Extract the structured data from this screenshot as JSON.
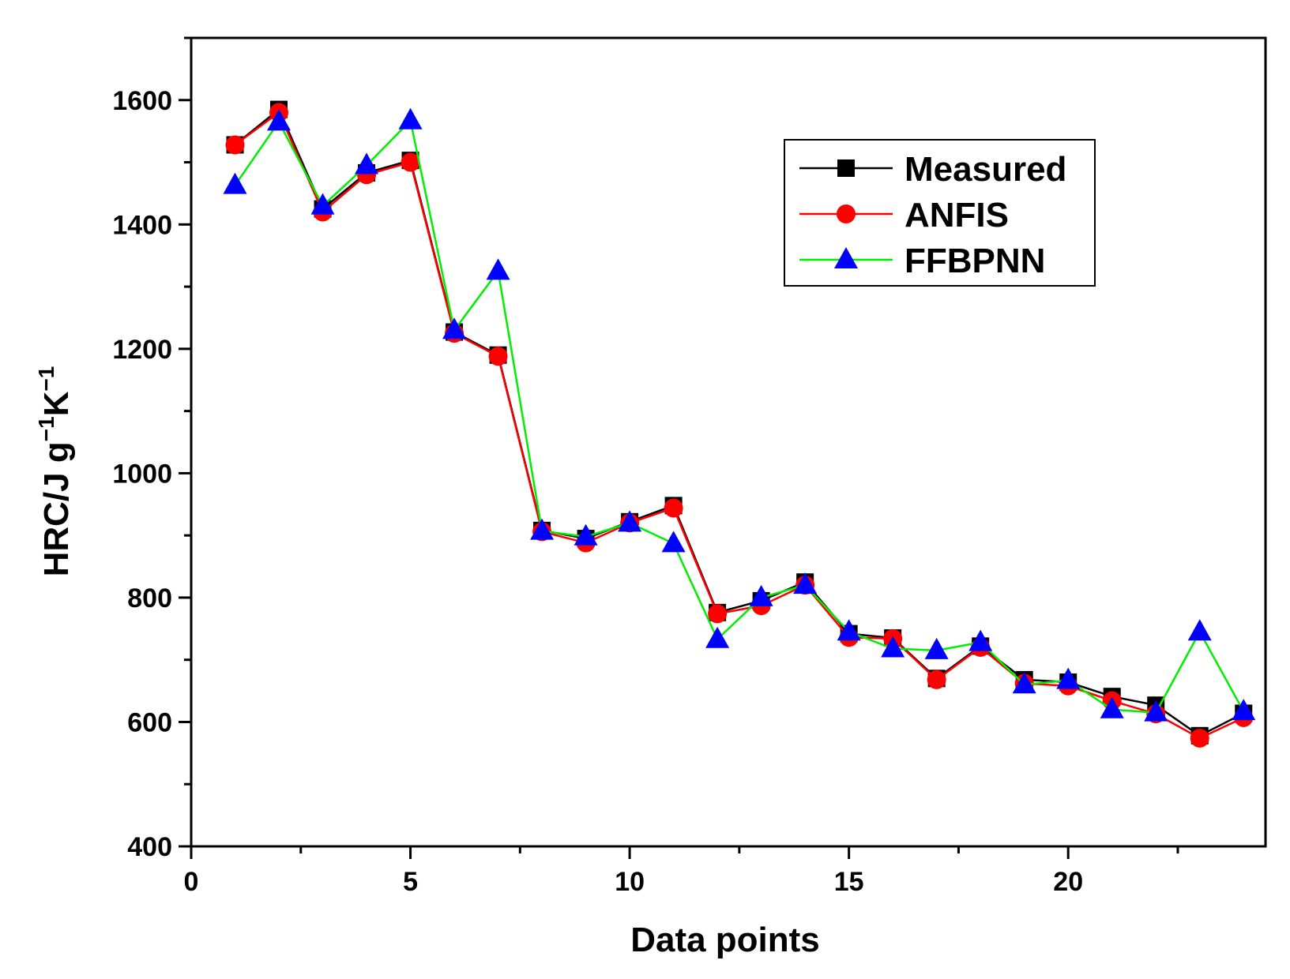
{
  "chart_data": {
    "type": "line",
    "title": "",
    "xlabel": "Data points",
    "ylabel": {
      "main": "HRC/J g",
      "sup1": "−1",
      "unit2": "K",
      "sup2": "−1"
    },
    "xlim": [
      0,
      24.5
    ],
    "ylim": [
      400,
      1700
    ],
    "x_major_ticks": [
      0,
      5,
      10,
      15,
      20
    ],
    "x_minor_ticks": [
      2.5,
      7.5,
      12.5,
      17.5,
      22.5
    ],
    "y_major_ticks": [
      400,
      600,
      800,
      1000,
      1200,
      1400,
      1600
    ],
    "y_minor_ticks": [
      500,
      700,
      900,
      1100,
      1300,
      1500,
      1700
    ],
    "grid": false,
    "legend_position": "top-right",
    "x": [
      1,
      2,
      3,
      4,
      5,
      6,
      7,
      8,
      9,
      10,
      11,
      12,
      13,
      14,
      15,
      16,
      17,
      18,
      19,
      20,
      21,
      22,
      23,
      24
    ],
    "series": [
      {
        "name": "Measured",
        "color": "#000000",
        "marker": "square",
        "values": [
          1528,
          1585,
          1425,
          1483,
          1503,
          1227,
          1190,
          908,
          895,
          922,
          948,
          776,
          795,
          825,
          742,
          735,
          670,
          722,
          668,
          664,
          641,
          627,
          578,
          614
        ]
      },
      {
        "name": "ANFIS",
        "color": "#ff0000",
        "marker": "circle",
        "values": [
          1528,
          1580,
          1420,
          1480,
          1500,
          1225,
          1188,
          906,
          888,
          920,
          944,
          774,
          787,
          820,
          736,
          734,
          668,
          720,
          662,
          658,
          634,
          613,
          574,
          607
        ]
      },
      {
        "name": "FFBPNN",
        "color": "#00ee00",
        "marker_color": "#0000ff",
        "marker": "triangle",
        "values": [
          1463,
          1565,
          1430,
          1495,
          1567,
          1230,
          1325,
          907,
          898,
          920,
          887,
          733,
          800,
          820,
          745,
          718,
          715,
          728,
          660,
          667,
          620,
          615,
          745,
          617
        ]
      }
    ]
  }
}
